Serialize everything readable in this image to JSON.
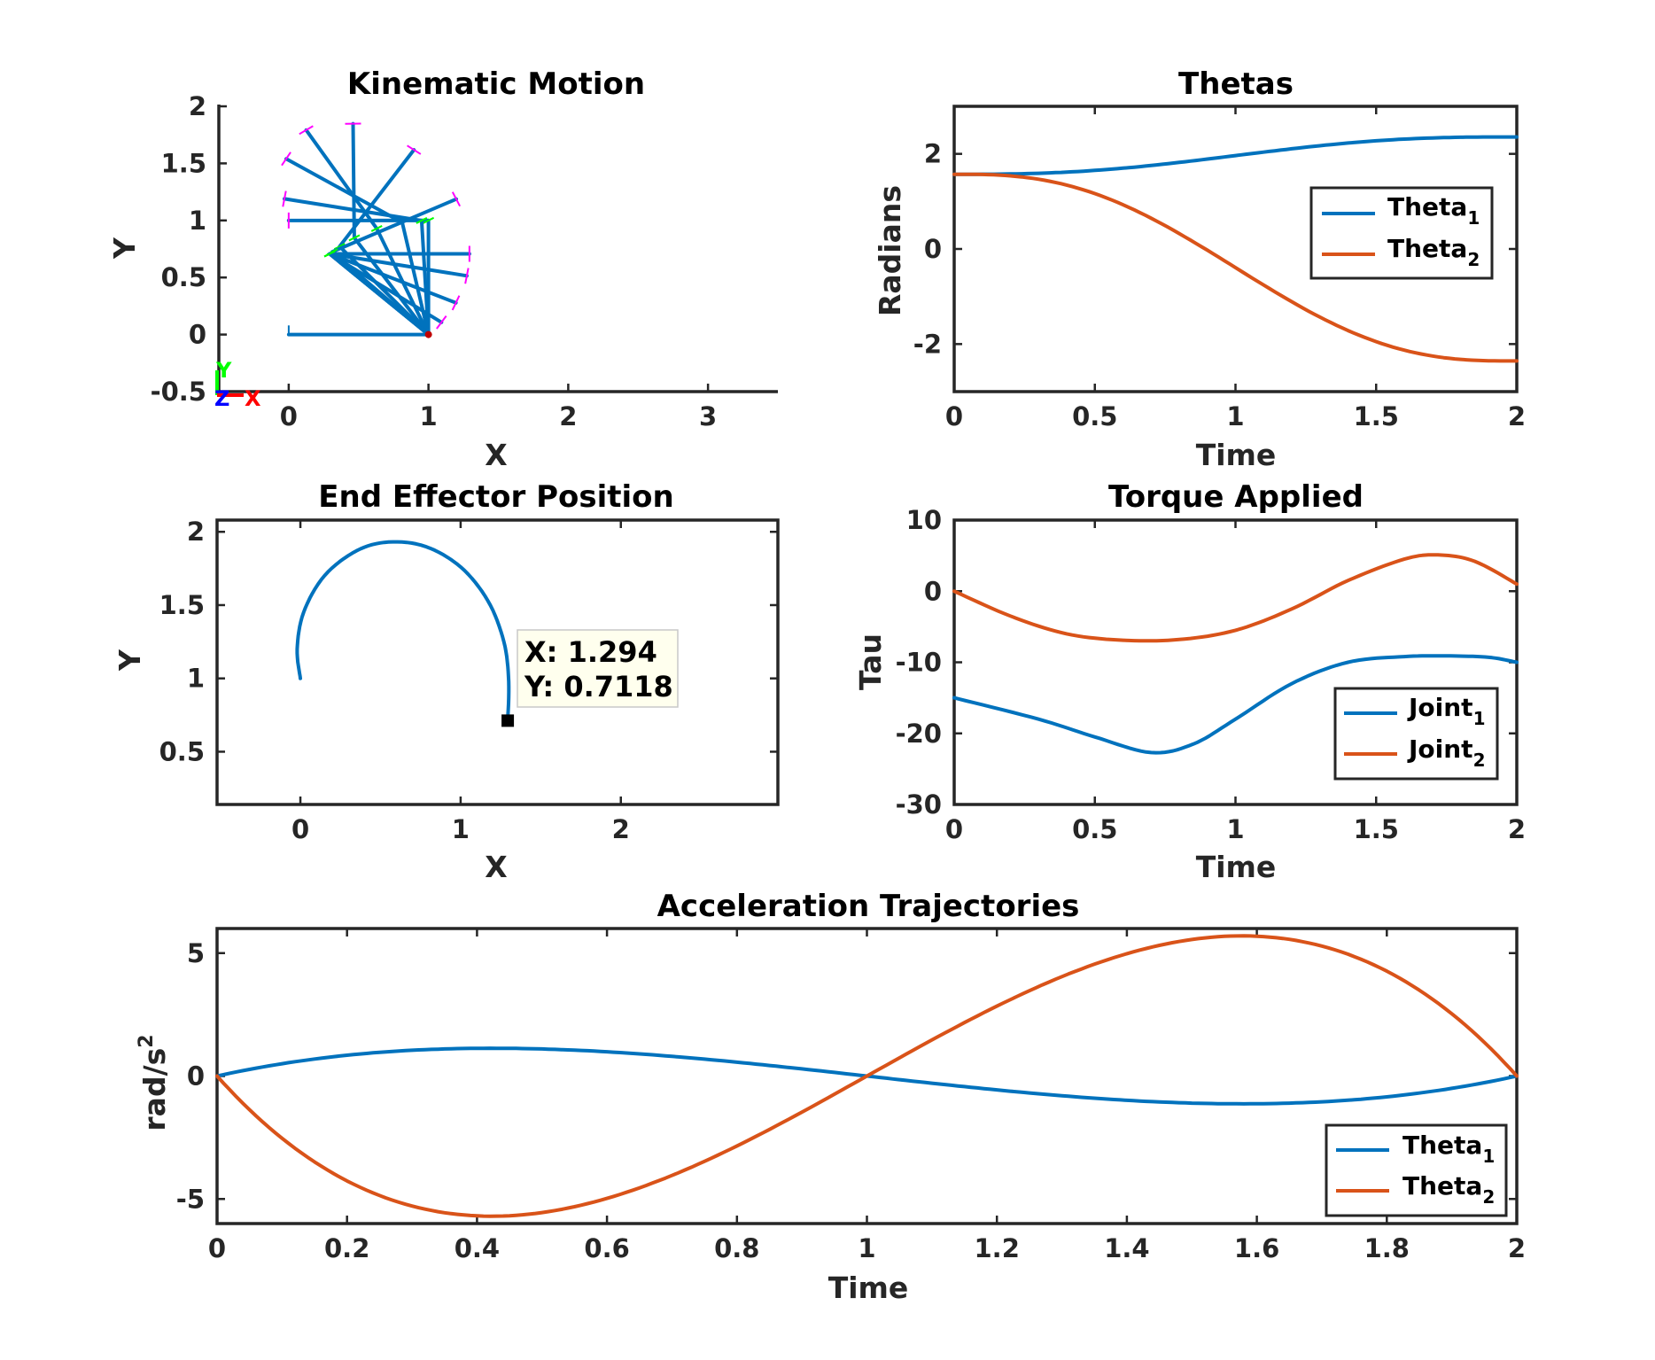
{
  "colors": {
    "series1": "#0072BD",
    "series2": "#D95319",
    "axes": "#262626",
    "frame_markers": "#FF00FF",
    "frame_markers_green": "#00FF00",
    "datatip_bg": "#FFFFEE"
  },
  "chart_data": [
    {
      "id": "kinematic",
      "type": "line",
      "title": "Kinematic Motion",
      "xlabel": "X",
      "ylabel": "Y",
      "xlim": [
        -0.5,
        3.5
      ],
      "ylim": [
        -0.5,
        2
      ],
      "xticks": [
        "0",
        "1",
        "2",
        "3"
      ],
      "yticks": [
        "-0.5",
        "0",
        "0.5",
        "1",
        "1.5",
        "2"
      ],
      "box": false,
      "triad_labels": {
        "x": "X",
        "y": "Y",
        "z": "Z"
      },
      "base": [
        1,
        0
      ],
      "link1_length": 1,
      "link2_length": 1,
      "poses": [
        {
          "theta1": 1.571,
          "theta2": 1.571
        },
        {
          "theta1": 1.62,
          "theta2": 1.33
        },
        {
          "theta1": 1.76,
          "theta2": 0.79
        },
        {
          "theta1": 1.95,
          "theta2": 0.15
        },
        {
          "theta1": 2.13,
          "theta2": -0.55
        },
        {
          "theta1": 2.26,
          "theta2": -1.25
        },
        {
          "theta1": 2.33,
          "theta2": -1.85
        },
        {
          "theta1": 2.356,
          "theta2": -2.356
        }
      ],
      "links_extra": [
        {
          "theta1": 2.356,
          "theta2": -2.55
        },
        {
          "theta1": 2.356,
          "theta2": -2.8
        },
        {
          "theta1": 2.356,
          "theta2": -3.0
        }
      ]
    },
    {
      "id": "thetas",
      "type": "line",
      "title": "Thetas",
      "xlabel": "Time",
      "ylabel": "Radians",
      "xlim": [
        0,
        2
      ],
      "ylim": [
        -3,
        3
      ],
      "xticks": [
        "0",
        "0.5",
        "1",
        "1.5",
        "2"
      ],
      "yticks": [
        "-2",
        "0",
        "2"
      ],
      "legend_location": "east",
      "series": [
        {
          "name": "Theta",
          "subscript": "1",
          "start": 1.571,
          "end": 2.356
        },
        {
          "name": "Theta",
          "subscript": "2",
          "start": 1.571,
          "end": -2.356
        }
      ]
    },
    {
      "id": "endeffector",
      "type": "line",
      "title": "End Effector Position",
      "xlabel": "X",
      "ylabel": "Y",
      "xlim": [
        -0.52,
        2.98
      ],
      "ylim": [
        0.14,
        2.08
      ],
      "xticks": [
        "0",
        "1",
        "2"
      ],
      "yticks": [
        "0.5",
        "1",
        "1.5",
        "2"
      ],
      "path": [
        [
          0,
          1
        ],
        [
          -0.02,
          1.2
        ],
        [
          0.02,
          1.45
        ],
        [
          0.15,
          1.7
        ],
        [
          0.35,
          1.87
        ],
        [
          0.55,
          1.93
        ],
        [
          0.78,
          1.9
        ],
        [
          1.0,
          1.76
        ],
        [
          1.17,
          1.53
        ],
        [
          1.27,
          1.25
        ],
        [
          1.3,
          0.98
        ],
        [
          1.294,
          0.7118
        ]
      ],
      "datatip": {
        "x_label": "X: 1.294",
        "y_label": "Y: 0.7118",
        "x": 1.294,
        "y": 0.7118
      }
    },
    {
      "id": "torque",
      "type": "line",
      "title": "Torque Applied",
      "xlabel": "Time",
      "ylabel": "Tau",
      "xlim": [
        0,
        2
      ],
      "ylim": [
        -30,
        10
      ],
      "xticks": [
        "0",
        "0.5",
        "1",
        "1.5",
        "2"
      ],
      "yticks": [
        "-30",
        "-20",
        "-10",
        "0",
        "10"
      ],
      "legend_location": "southeast",
      "series": [
        {
          "name": "Joint",
          "subscript": "1",
          "points": [
            [
              0,
              -15
            ],
            [
              0.3,
              -18
            ],
            [
              0.5,
              -20.5
            ],
            [
              0.7,
              -22.7
            ],
            [
              0.85,
              -21.5
            ],
            [
              1.0,
              -18
            ],
            [
              1.2,
              -13
            ],
            [
              1.4,
              -10
            ],
            [
              1.6,
              -9.2
            ],
            [
              1.75,
              -9.1
            ],
            [
              1.9,
              -9.3
            ],
            [
              2.0,
              -10
            ]
          ]
        },
        {
          "name": "Joint",
          "subscript": "2",
          "points": [
            [
              0,
              0
            ],
            [
              0.2,
              -3.5
            ],
            [
              0.4,
              -6
            ],
            [
              0.6,
              -6.9
            ],
            [
              0.8,
              -6.8
            ],
            [
              1.0,
              -5.5
            ],
            [
              1.2,
              -2.5
            ],
            [
              1.4,
              1.5
            ],
            [
              1.6,
              4.5
            ],
            [
              1.72,
              5.1
            ],
            [
              1.85,
              4.2
            ],
            [
              2.0,
              1
            ]
          ]
        }
      ]
    },
    {
      "id": "acceleration",
      "type": "line",
      "title": "Acceleration Trajectories",
      "xlabel": "Time",
      "ylabel": "rad/s",
      "ylabel_superscript": "2",
      "xlim": [
        0,
        2
      ],
      "ylim": [
        -6,
        6
      ],
      "xticks": [
        "0",
        "0.2",
        "0.4",
        "0.6",
        "0.8",
        "1",
        "1.2",
        "1.4",
        "1.6",
        "1.8",
        "2"
      ],
      "yticks": [
        "-5",
        "0",
        "5"
      ],
      "legend_location": "southeast",
      "series": [
        {
          "name": "Theta",
          "subscript": "1",
          "amplitude": 1.13
        },
        {
          "name": "Theta",
          "subscript": "2",
          "amplitude": -5.7
        }
      ]
    }
  ]
}
